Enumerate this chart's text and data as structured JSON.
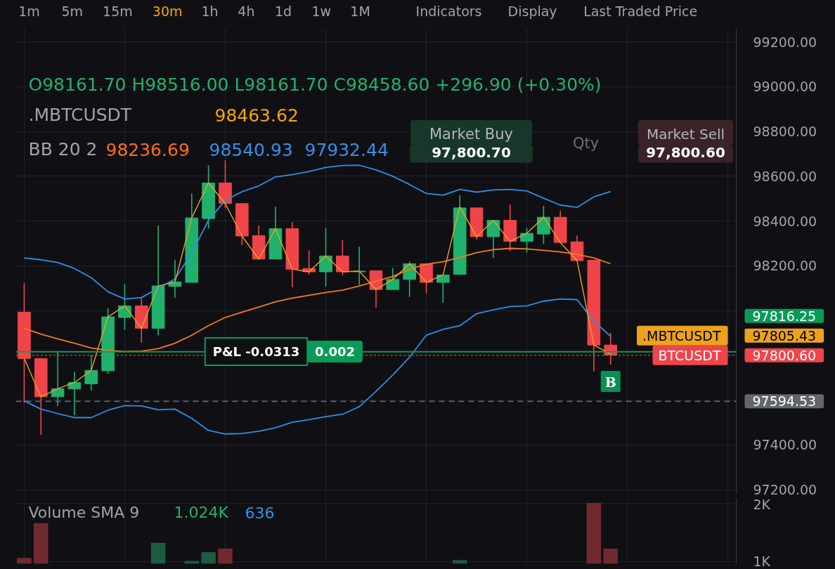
{
  "chart_data": [
    {
      "type": "candlestick",
      "categories": [
        null,
        null,
        null,
        null,
        null,
        null,
        null,
        null,
        null,
        null,
        null,
        null,
        null,
        null,
        null,
        null,
        null,
        null,
        null,
        null,
        null,
        null,
        null,
        null,
        null,
        null,
        null,
        null,
        null,
        null,
        null,
        null,
        null,
        null,
        null,
        null,
        null,
        null,
        null,
        null,
        null,
        null,
        null
      ],
      "ohlc": [
        [
          97993,
          98122,
          97589,
          97786
        ],
        [
          97786,
          97786,
          97445,
          97615
        ],
        [
          97615,
          97819,
          97574,
          97651
        ],
        [
          97650,
          97726,
          97532,
          97679
        ],
        [
          97673,
          97801,
          97644,
          97733
        ],
        [
          97731,
          98011,
          97717,
          97972
        ],
        [
          97969,
          98118,
          97913,
          98021
        ],
        [
          98021,
          98058,
          97857,
          97921
        ],
        [
          97921,
          98380,
          97888,
          98110
        ],
        [
          98108,
          98227,
          98058,
          98128
        ],
        [
          98126,
          98523,
          98126,
          98414
        ],
        [
          98411,
          98649,
          98366,
          98570
        ],
        [
          98570,
          98671,
          98457,
          98478
        ],
        [
          98478,
          98478,
          98293,
          98333
        ],
        [
          98335,
          98380,
          98230,
          98230
        ],
        [
          98230,
          98464,
          98230,
          98366
        ],
        [
          98366,
          98395,
          98105,
          98185
        ],
        [
          98188,
          98269,
          98160,
          98173
        ],
        [
          98173,
          98369,
          98108,
          98244
        ],
        [
          98244,
          98316,
          98157,
          98173
        ],
        [
          98173,
          98285,
          98115,
          98176
        ],
        [
          98178,
          98178,
          98014,
          98094
        ],
        [
          98094,
          98191,
          98094,
          98139
        ],
        [
          98139,
          98219,
          98061,
          98209
        ],
        [
          98209,
          98209,
          98077,
          98126
        ],
        [
          98126,
          98159,
          98035,
          98159
        ],
        [
          98161.7,
          98516,
          98161.7,
          98458.6
        ],
        [
          98458.6,
          98458.6,
          98317,
          98330
        ],
        [
          98330,
          98403,
          98235,
          98403
        ],
        [
          98403,
          98474,
          98265,
          98309
        ],
        [
          98309,
          98370,
          98259,
          98345
        ],
        [
          98342,
          98468,
          98298,
          98417
        ],
        [
          98417,
          98445,
          98304,
          98304
        ],
        [
          98307,
          98335,
          98223,
          98223
        ],
        [
          98225,
          98225,
          97728,
          97846
        ],
        [
          97846,
          97901,
          97759,
          97800.6
        ],
        null,
        null,
        null,
        null,
        null,
        null,
        null
      ],
      "colors": [
        "#ef454a",
        "#ef454a",
        "#20b26c",
        "#20b26c",
        "#20b26c",
        "#20b26c",
        "#20b26c",
        "#ef454a",
        "#20b26c",
        "#20b26c",
        "#20b26c",
        "#20b26c",
        "#ef454a",
        "#ef454a",
        "#ef454a",
        "#20b26c",
        "#ef454a",
        "#ef454a",
        "#20b26c",
        "#ef454a",
        "#20b26c",
        "#ef454a",
        "#20b26c",
        "#20b26c",
        "#ef454a",
        "#20b26c",
        "#20b26c",
        "#ef454a",
        "#20b26c",
        "#ef454a",
        "#20b26c",
        "#20b26c",
        "#ef454a",
        "#ef454a",
        "#ef454a",
        "#ef454a",
        null,
        null,
        null,
        null,
        null,
        null,
        null
      ],
      "series": [
        {
          "type": "line",
          "color": "#2e8de6",
          "values": [
            98235,
            98227,
            98215,
            98188,
            98147,
            98084,
            98052,
            98058,
            98100,
            98141,
            98257,
            98404,
            98492,
            98531,
            98557,
            98597,
            98607,
            98621,
            98639,
            98648,
            98649,
            98628,
            98600,
            98563,
            98523,
            98515,
            98540.93,
            98529,
            98539,
            98541,
            98534,
            98502,
            98471,
            98461,
            98508,
            98532,
            null,
            null,
            null,
            null,
            null,
            null,
            null
          ]
        },
        {
          "type": "line",
          "color": "#f57a1c",
          "values": [
            97921,
            97895,
            97874,
            97854,
            97833,
            97822,
            97817,
            97819,
            97830,
            97854,
            97890,
            97933,
            97969,
            97993,
            98016,
            98039,
            98056,
            98068,
            98081,
            98091,
            98110,
            98131,
            98152,
            98184,
            98207,
            98218,
            98236.69,
            98259,
            98272,
            98278,
            98275,
            98269,
            98262,
            98251,
            98235,
            98209,
            null,
            null,
            null,
            null,
            null,
            null,
            null
          ]
        },
        {
          "type": "line",
          "color": "#2e8de6",
          "values": [
            97597,
            97560,
            97540,
            97522,
            97522,
            97555,
            97576,
            97574,
            97557,
            97560,
            97519,
            97465,
            97449,
            97451,
            97461,
            97477,
            97501,
            97513,
            97526,
            97537,
            97571,
            97639,
            97712,
            97792,
            97890,
            97916,
            97932.44,
            97986,
            98003,
            98018,
            98021,
            98042,
            98052,
            98049,
            97953,
            97885,
            null,
            null,
            null,
            null,
            null,
            null,
            null
          ]
        },
        {
          "type": "line",
          "name": ".MBTCUSDT",
          "color": "#eda21e",
          "values": [
            97786,
            97615,
            97651,
            97679,
            97733,
            97972,
            98021,
            97921,
            98110,
            98128,
            98414,
            98570,
            98478,
            98333,
            98230,
            98366,
            98185,
            98173,
            98244,
            98173,
            98176,
            98094,
            98139,
            98209,
            98126,
            98159,
            98463.62,
            98330,
            98403,
            98309,
            98345,
            98417,
            98304,
            98223,
            97846,
            97805.43,
            null,
            null,
            null,
            null,
            null,
            null,
            null
          ]
        }
      ],
      "ylim": [
        97180,
        99260
      ],
      "yticks": [
        {
          "value": 97200,
          "label": "97200.00"
        },
        {
          "value": 97400,
          "label": "97400.00"
        },
        {
          "value": 97600,
          "label": null
        },
        {
          "value": 97800,
          "label": null
        },
        {
          "value": 98000,
          "label": null
        },
        {
          "value": 98200,
          "label": "98200.00"
        },
        {
          "value": 98400,
          "label": "98400.00"
        },
        {
          "value": 98600,
          "label": "98600.00"
        },
        {
          "value": 98800,
          "label": "98800.00"
        },
        {
          "value": 99000,
          "label": "99000.00"
        },
        {
          "value": 99200,
          "label": "99200.00"
        }
      ],
      "grid": true,
      "ref_lines": [
        {
          "axis": "y",
          "value": 97816.25,
          "color": "#0a9a58",
          "line_style": "solid"
        },
        {
          "axis": "y",
          "value": 97800.6,
          "label": "BTCUSDT",
          "color": "#ef454a",
          "line_style": "dotted"
        },
        {
          "axis": "y",
          "value": 97594.53,
          "color": "#62666f",
          "line_style": "dashed"
        }
      ],
      "annotations": [
        "1m",
        "5m",
        "15m",
        "30m",
        "1h",
        "4h",
        "1d",
        "1w",
        "1M",
        "Indicators",
        "Display",
        "Last Traded Price",
        "O98161.70 H98516.00 L98161.70 C98458.60 +296.90 (+0.30%)",
        ".MBTCUSDT",
        "98463.62",
        "BB 20 2",
        "98236.69",
        "98540.93",
        "97932.44",
        "Market Buy",
        "97,800.70",
        "Qty",
        "Market Sell",
        "97,800.60",
        "P&L -0.0313",
        "0.002",
        "B",
        "97816.25",
        "97805.43",
        "97800.60",
        "97594.53"
      ]
    },
    {
      "type": "bar",
      "categories": [
        null,
        null,
        null,
        null,
        null,
        null,
        null,
        null,
        null,
        null,
        null,
        null,
        null,
        null,
        null,
        null,
        null,
        null,
        null,
        null,
        null,
        null,
        null,
        null,
        null,
        null,
        null,
        null,
        null,
        null,
        null,
        null,
        null,
        null,
        null,
        null,
        null,
        null,
        null,
        null,
        null,
        null,
        null
      ],
      "values": [
        1060,
        1660,
        null,
        null,
        null,
        null,
        null,
        null,
        1320,
        null,
        1010,
        1160,
        1220,
        null,
        null,
        null,
        null,
        null,
        null,
        null,
        null,
        null,
        null,
        null,
        null,
        null,
        1024,
        null,
        null,
        null,
        null,
        null,
        null,
        null,
        2010,
        1220,
        null,
        null,
        null,
        null,
        null,
        null,
        null
      ],
      "colors": [
        "#6f2a2f",
        "#6f2a2f",
        "#1c5a41",
        "#1c5a41",
        "#1c5a41",
        "#1c5a41",
        "#1c5a41",
        "#6f2a2f",
        "#1c5a41",
        "#1c5a41",
        "#1c5a41",
        "#1c5a41",
        "#6f2a2f",
        "#6f2a2f",
        "#6f2a2f",
        "#1c5a41",
        "#6f2a2f",
        "#6f2a2f",
        "#1c5a41",
        "#6f2a2f",
        "#1c5a41",
        "#6f2a2f",
        "#1c5a41",
        "#1c5a41",
        "#6f2a2f",
        "#1c5a41",
        "#1c5a41",
        "#6f2a2f",
        "#1c5a41",
        "#6f2a2f",
        "#1c5a41",
        "#1c5a41",
        "#6f2a2f",
        "#6f2a2f",
        "#6f2a2f",
        "#6f2a2f",
        null,
        null,
        null,
        null,
        null,
        null,
        null
      ],
      "ylim": [
        960,
        2100
      ],
      "yticks": [
        {
          "value": 1000,
          "label": "1K"
        },
        {
          "value": 2000,
          "label": "2K"
        }
      ],
      "grid": true,
      "annotations": [
        "Volume SMA 9",
        "1.024K",
        "636"
      ]
    }
  ]
}
